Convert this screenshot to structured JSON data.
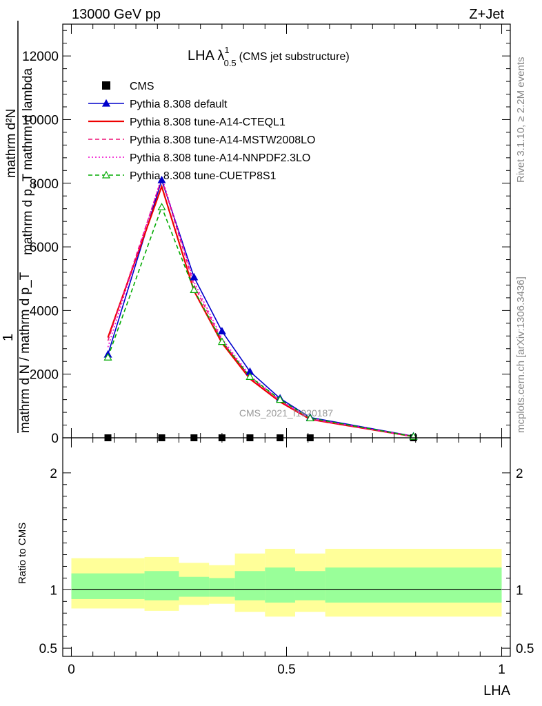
{
  "header": {
    "left": "13000 GeV pp",
    "right": "Z+Jet"
  },
  "side_labels": {
    "rivet": "Rivet 3.1.10, ≥ 2.2M events",
    "mcplots": "mcplots.cern.ch [arXiv:1306.3436]"
  },
  "watermark": "CMS_2021_I1920187",
  "chart_data": [
    {
      "type": "line",
      "title": "LHA λ",
      "title_sup": "1",
      "title_sub": "0.5",
      "title_suffix": "(CMS jet substructure)",
      "ylabel_num": "mathrm d²N",
      "ylabel_line2": "mathrm d p_T mathrm d lambda",
      "ylabel_den": "mathrm d N / mathrm d p_T",
      "ylabel_one": "1",
      "ylim": [
        0,
        13000
      ],
      "xlim": [
        -0.02,
        1.02
      ],
      "y_ticks": [
        0,
        2000,
        4000,
        6000,
        8000,
        10000,
        12000
      ],
      "y_tick_labels": [
        "0",
        "2000",
        "4000",
        "6000",
        "8000",
        "10000",
        "12000"
      ],
      "x": [
        0.085,
        0.21,
        0.285,
        0.35,
        0.415,
        0.485,
        0.555,
        0.795
      ],
      "bin_edges": [
        0.0,
        0.17,
        0.25,
        0.32,
        0.38,
        0.45,
        0.52,
        0.59,
        1.0
      ],
      "series": [
        {
          "name": "CMS",
          "color": "#000000",
          "style": "data",
          "values": [
            0,
            0,
            0,
            0,
            0,
            0,
            0,
            0
          ]
        },
        {
          "name": "Pythia 8.308 default",
          "color": "#0000cc",
          "style": "solid-triangle",
          "values": [
            2620,
            8100,
            5050,
            3350,
            2080,
            1240,
            640,
            50
          ]
        },
        {
          "name": "Pythia 8.308 tune-A14-CTEQL1",
          "color": "#ee0000",
          "style": "solid",
          "values": [
            3150,
            7900,
            4620,
            2980,
            1850,
            1130,
            580,
            40
          ]
        },
        {
          "name": "Pythia 8.308 tune-A14-MSTW2008LO",
          "color": "#ee1177",
          "style": "dashed",
          "values": [
            3050,
            8150,
            4800,
            3050,
            1900,
            1160,
            590,
            40
          ]
        },
        {
          "name": "Pythia 8.308 tune-A14-NNPDF2.3LO",
          "color": "#ee00cc",
          "style": "dotted",
          "values": [
            2850,
            8200,
            4900,
            3120,
            1950,
            1180,
            610,
            40
          ]
        },
        {
          "name": "Pythia 8.308 tune-CUETP8S1",
          "color": "#00aa00",
          "style": "dashed-open-triangle",
          "values": [
            2530,
            7250,
            4650,
            3020,
            1920,
            1200,
            620,
            40
          ]
        }
      ]
    },
    {
      "type": "area",
      "ylabel": "Ratio to CMS",
      "ylim": [
        0.43,
        2.3
      ],
      "y_ticks": [
        0.5,
        1,
        2
      ],
      "y_tick_labels": [
        "0.5",
        "1",
        "2"
      ],
      "xlabel": "LHA",
      "x_ticks": [
        0,
        0.5,
        1
      ],
      "x_tick_labels": [
        "0",
        "0.5",
        "1"
      ],
      "bin_edges": [
        0.0,
        0.17,
        0.25,
        0.32,
        0.38,
        0.45,
        0.52,
        0.59,
        1.0
      ],
      "band_yellow": [
        [
          0.84,
          1.27
        ],
        [
          0.82,
          1.28
        ],
        [
          0.87,
          1.23
        ],
        [
          0.88,
          1.21
        ],
        [
          0.81,
          1.31
        ],
        [
          0.77,
          1.35
        ],
        [
          0.81,
          1.31
        ],
        [
          0.77,
          1.35
        ]
      ],
      "band_green": [
        [
          0.92,
          1.14
        ],
        [
          0.91,
          1.16
        ],
        [
          0.94,
          1.11
        ],
        [
          0.94,
          1.1
        ],
        [
          0.91,
          1.16
        ],
        [
          0.89,
          1.19
        ],
        [
          0.91,
          1.16
        ],
        [
          0.89,
          1.19
        ]
      ],
      "colors": {
        "yellow": "#ffff99",
        "green": "#99ff99",
        "ref": "#000000"
      }
    }
  ]
}
